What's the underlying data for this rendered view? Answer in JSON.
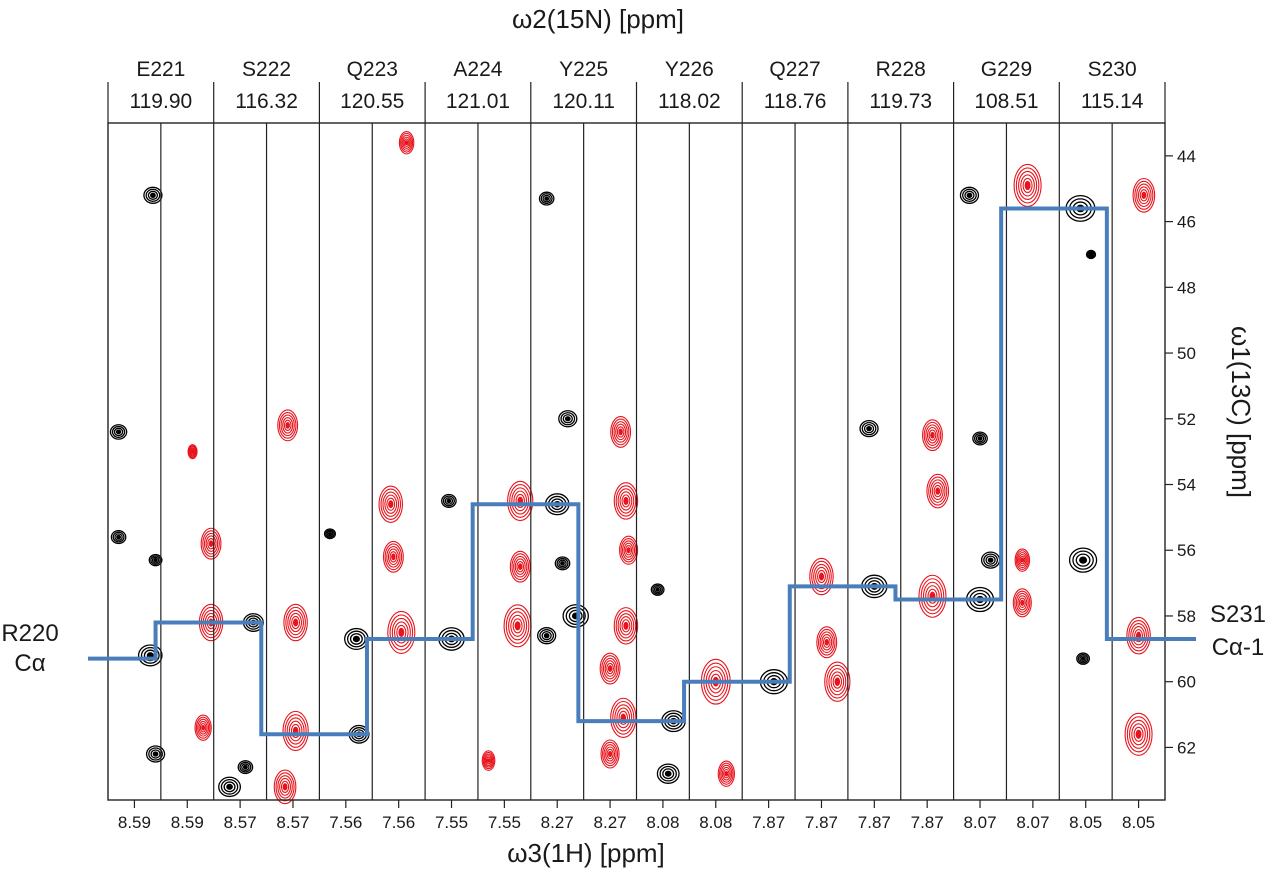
{
  "axes": {
    "top_label": "ω2(15N) [ppm]",
    "bottom_label": "ω3(1H) [ppm]",
    "right_label": "ω1(13C) [ppm]"
  },
  "residues": [
    {
      "name": "E221",
      "n_shift": "119.90"
    },
    {
      "name": "S222",
      "n_shift": "116.32"
    },
    {
      "name": "Q223",
      "n_shift": "120.55"
    },
    {
      "name": "A224",
      "n_shift": "121.01"
    },
    {
      "name": "Y225",
      "n_shift": "120.11"
    },
    {
      "name": "Y226",
      "n_shift": "118.02"
    },
    {
      "name": "Q227",
      "n_shift": "118.76"
    },
    {
      "name": "R228",
      "n_shift": "119.73"
    },
    {
      "name": "G229",
      "n_shift": "108.51"
    },
    {
      "name": "S230",
      "n_shift": "115.14"
    }
  ],
  "h_ticks": [
    "8.59",
    "8.59",
    "8.57",
    "8.57",
    "7.56",
    "7.56",
    "7.55",
    "7.55",
    "8.27",
    "8.27",
    "8.08",
    "8.08",
    "7.87",
    "7.87",
    "7.87",
    "7.87",
    "8.07",
    "8.07",
    "8.05",
    "8.05"
  ],
  "c_ticks": [
    "44",
    "46",
    "48",
    "50",
    "52",
    "54",
    "56",
    "58",
    "60",
    "62"
  ],
  "c_axis_range_ppm": [
    43.0,
    63.6
  ],
  "start_annotation": {
    "line1": "R220",
    "line2": "Cα"
  },
  "end_annotation": {
    "line1": "S231",
    "line2": "Cα-1"
  },
  "walk": {
    "color": "#4a7ebb",
    "ca_values_ppm": [
      59.3,
      58.2,
      61.6,
      58.7,
      54.6,
      61.2,
      60.0,
      57.1,
      57.5,
      45.6,
      58.7
    ]
  },
  "colors": {
    "positive_contour": "#000000",
    "negative_contour": "#e8141c",
    "walk_line": "#4a7ebb"
  }
}
